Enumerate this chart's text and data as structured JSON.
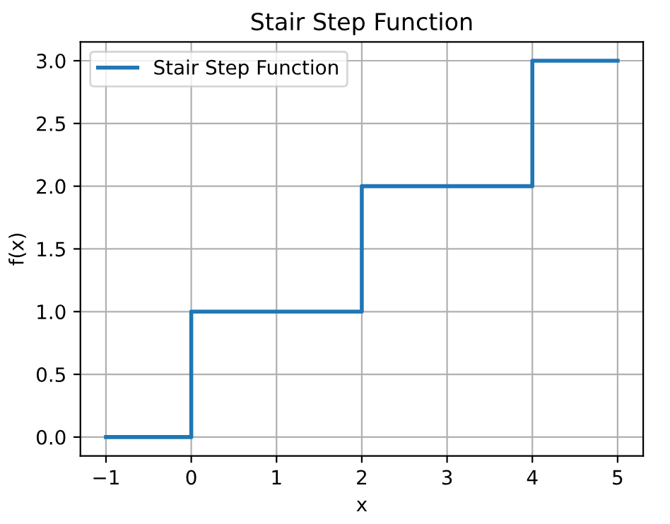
{
  "chart_data": {
    "type": "step",
    "title": "Stair Step Function",
    "xlabel": "x",
    "ylabel": "f(x)",
    "x": [
      -1,
      0,
      2,
      4,
      5
    ],
    "series": [
      {
        "name": "Stair Step Function",
        "color": "#1f77b4",
        "values": [
          0,
          1,
          2,
          3,
          3
        ]
      }
    ],
    "xlim": [
      -1.3,
      5.3
    ],
    "ylim": [
      -0.15,
      3.15
    ],
    "xticks": [
      {
        "value": -1,
        "label": "−1"
      },
      0,
      1,
      2,
      3,
      4,
      5
    ],
    "yticks": [
      {
        "value": 0,
        "label": "0.0"
      },
      {
        "value": 0.5,
        "label": "0.5"
      },
      {
        "value": 1,
        "label": "1.0"
      },
      {
        "value": 1.5,
        "label": "1.5"
      },
      {
        "value": 2,
        "label": "2.0"
      },
      {
        "value": 2.5,
        "label": "2.5"
      },
      {
        "value": 3,
        "label": "3.0"
      }
    ],
    "grid": true,
    "legend": "top left",
    "line_style": "solid",
    "marker": "none"
  }
}
